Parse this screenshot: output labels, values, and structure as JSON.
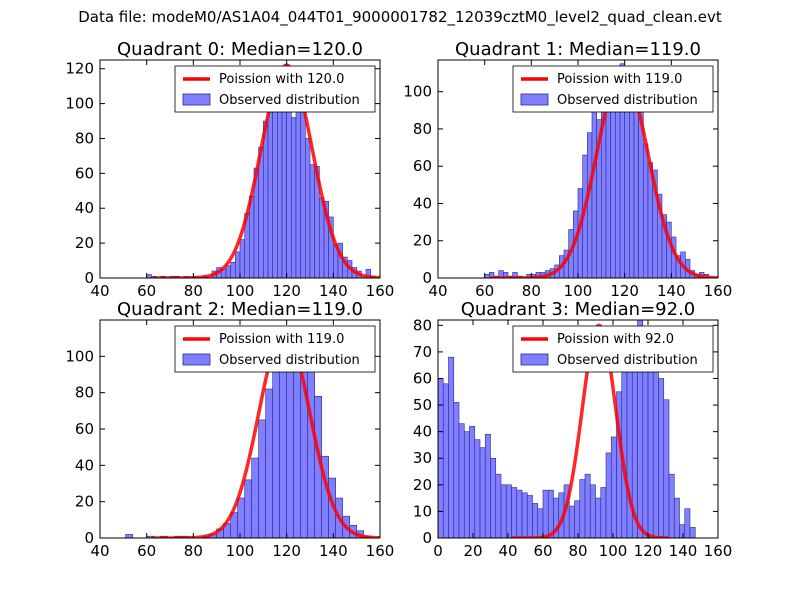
{
  "figure_title": "Data file: modeM0/AS1A04_044T01_9000001782_12039cztM0_level2_quad_clean.evt",
  "colors": {
    "fit_line": "#ff0000",
    "bar_fill": "#7f7fff",
    "bar_edge": "#2a2a8c",
    "axes": "#000000",
    "background": "#ffffff"
  },
  "chart_data": [
    {
      "type": "bar",
      "title": "Quadrant 0: Median=120.0",
      "xlim": [
        40,
        160
      ],
      "ylim": [
        0,
        125
      ],
      "xticks": [
        "40",
        "60",
        "80",
        "100",
        "120",
        "140",
        "160"
      ],
      "yticks": [
        "0",
        "20",
        "40",
        "60",
        "80",
        "100",
        "120"
      ],
      "legend": {
        "placement": "top-right",
        "entries": [
          "Poission with 120.0",
          "Observed distribution"
        ]
      },
      "fit": {
        "name": "Poission with 120.0",
        "lambda": 120,
        "peak": 122
      },
      "bin_width": 2,
      "bin_starts": [
        60,
        62,
        64,
        66,
        68,
        70,
        72,
        74,
        76,
        78,
        80,
        82,
        84,
        86,
        88,
        90,
        92,
        94,
        96,
        98,
        100,
        102,
        104,
        106,
        108,
        110,
        112,
        114,
        116,
        118,
        120,
        122,
        124,
        126,
        128,
        130,
        132,
        134,
        136,
        138,
        140,
        142,
        144,
        146,
        148,
        150,
        152,
        154,
        156
      ],
      "counts": [
        2,
        1,
        0,
        1,
        0,
        1,
        1,
        0,
        1,
        0,
        1,
        0,
        1,
        0,
        4,
        6,
        5,
        7,
        9,
        15,
        22,
        37,
        47,
        63,
        75,
        90,
        104,
        113,
        115,
        120,
        99,
        92,
        105,
        110,
        80,
        65,
        64,
        46,
        44,
        35,
        19,
        20,
        12,
        10,
        6,
        4,
        0,
        5,
        1
      ]
    },
    {
      "type": "bar",
      "title": "Quadrant 1: Median=119.0",
      "xlim": [
        40,
        160
      ],
      "ylim": [
        0,
        117
      ],
      "xticks": [
        "40",
        "60",
        "80",
        "100",
        "120",
        "140",
        "160"
      ],
      "yticks": [
        "0",
        "20",
        "40",
        "60",
        "80",
        "100"
      ],
      "legend": {
        "placement": "top-right",
        "entries": [
          "Poission with 119.0",
          "Observed distribution"
        ]
      },
      "fit": {
        "name": "Poission with 119.0",
        "lambda": 119,
        "peak": 111
      },
      "bin_width": 2,
      "bin_starts": [
        60,
        62,
        64,
        66,
        68,
        70,
        72,
        74,
        76,
        78,
        80,
        82,
        84,
        86,
        88,
        90,
        92,
        94,
        96,
        98,
        100,
        102,
        104,
        106,
        108,
        110,
        112,
        114,
        116,
        118,
        120,
        122,
        124,
        126,
        128,
        130,
        132,
        134,
        136,
        138,
        140,
        142,
        144,
        146,
        148,
        150,
        152,
        154,
        156
      ],
      "counts": [
        2,
        3,
        1,
        4,
        3,
        1,
        3,
        1,
        0,
        2,
        2,
        3,
        3,
        4,
        5,
        7,
        12,
        15,
        26,
        36,
        48,
        66,
        78,
        91,
        85,
        103,
        105,
        108,
        106,
        115,
        106,
        105,
        96,
        90,
        72,
        62,
        58,
        45,
        34,
        30,
        22,
        12,
        14,
        10,
        4,
        2,
        3,
        2,
        0
      ]
    },
    {
      "type": "bar",
      "title": "Quadrant 2: Median=119.0",
      "xlim": [
        40,
        160
      ],
      "ylim": [
        0,
        120
      ],
      "xticks": [
        "40",
        "60",
        "80",
        "100",
        "120",
        "140",
        "160"
      ],
      "yticks": [
        "0",
        "20",
        "40",
        "60",
        "80",
        "100"
      ],
      "legend": {
        "placement": "top-right",
        "entries": [
          "Poission with 119.0",
          "Observed distribution"
        ]
      },
      "fit": {
        "name": "Poission with 119.0",
        "lambda": 119,
        "peak": 114
      },
      "bin_width": 3,
      "bin_starts": [
        51,
        54,
        57,
        60,
        63,
        66,
        69,
        72,
        75,
        78,
        81,
        84,
        87,
        90,
        93,
        96,
        99,
        102,
        105,
        108,
        111,
        114,
        117,
        120,
        123,
        126,
        129,
        132,
        135,
        138,
        141,
        144,
        147,
        150,
        153
      ],
      "counts": [
        2,
        0,
        0,
        1,
        0,
        1,
        0,
        1,
        1,
        0,
        0,
        1,
        2,
        5,
        8,
        14,
        22,
        32,
        44,
        65,
        82,
        92,
        113,
        112,
        108,
        104,
        113,
        78,
        45,
        33,
        22,
        12,
        7,
        4,
        1
      ]
    },
    {
      "type": "bar",
      "title": "Quadrant 3: Median=92.0",
      "xlim": [
        0,
        160
      ],
      "ylim": [
        0,
        82
      ],
      "xticks": [
        "0",
        "20",
        "40",
        "60",
        "80",
        "100",
        "120",
        "140",
        "160"
      ],
      "yticks": [
        "0",
        "10",
        "20",
        "30",
        "40",
        "50",
        "60",
        "70",
        "80"
      ],
      "legend": {
        "placement": "top-right",
        "entries": [
          "Poission with 92.0",
          "Observed distribution"
        ]
      },
      "fit": {
        "name": "Poission with 92.0",
        "lambda": 92,
        "peak": 80
      },
      "bin_width": 3,
      "bin_starts": [
        0,
        3,
        6,
        9,
        12,
        15,
        18,
        21,
        24,
        27,
        30,
        33,
        36,
        39,
        42,
        45,
        48,
        51,
        54,
        57,
        60,
        63,
        66,
        69,
        72,
        75,
        78,
        81,
        84,
        87,
        90,
        93,
        96,
        99,
        102,
        105,
        108,
        111,
        114,
        117,
        120,
        123,
        126,
        129,
        132,
        135,
        138,
        141,
        144
      ],
      "counts": [
        60,
        58,
        68,
        51,
        43,
        40,
        42,
        37,
        34,
        39,
        30,
        24,
        20,
        20,
        19,
        18,
        17,
        16,
        13,
        11,
        18,
        18,
        15,
        17,
        20,
        12,
        14,
        22,
        24,
        20,
        15,
        19,
        32,
        38,
        55,
        65,
        63,
        79,
        82,
        68,
        70,
        75,
        60,
        52,
        24,
        15,
        5,
        11,
        4
      ]
    }
  ]
}
